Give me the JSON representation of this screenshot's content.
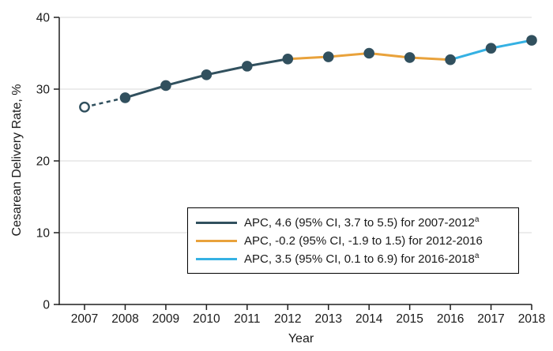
{
  "chart_data": {
    "type": "line",
    "title": "",
    "xlabel": "Year",
    "ylabel": "Cesarean Delivery Rate, %",
    "x": [
      2007,
      2008,
      2009,
      2010,
      2011,
      2012,
      2013,
      2014,
      2015,
      2016,
      2017,
      2018
    ],
    "y": [
      27.5,
      28.8,
      30.5,
      32.0,
      33.2,
      34.2,
      34.5,
      35.0,
      34.4,
      34.1,
      35.7,
      36.8
    ],
    "ylim": [
      0,
      40
    ],
    "yticks": [
      0,
      10,
      20,
      30,
      40
    ],
    "grid": true,
    "colors": {
      "dark_teal": "#31505e",
      "orange": "#e9a23b",
      "light_blue": "#35b1e3",
      "gridline": "#d9d9d9",
      "axis": "#1f1f1f"
    },
    "segments": [
      {
        "name": "pre-survey-dashed",
        "from": 2007,
        "to": 2008,
        "color": "#31505e",
        "dashed": true
      },
      {
        "name": "2007-2012",
        "from": 2008,
        "to": 2012,
        "color": "#31505e",
        "dashed": false
      },
      {
        "name": "2012-2016",
        "from": 2012,
        "to": 2016,
        "color": "#e9a23b",
        "dashed": false
      },
      {
        "name": "2016-2018",
        "from": 2016,
        "to": 2018,
        "color": "#35b1e3",
        "dashed": false
      }
    ],
    "marker": {
      "color": "#31505e",
      "open_year": 2007
    },
    "legend": {
      "position": "inside-bottom-center",
      "items": [
        {
          "label": "APC, 4.6 (95% CI, 3.7 to 5.5) for 2007-2012",
          "sup": "a",
          "color": "#31505e"
        },
        {
          "label": "APC, -0.2 (95% CI, -1.9 to 1.5) for 2012-2016",
          "sup": "",
          "color": "#e9a23b"
        },
        {
          "label": "APC, 3.5 (95% CI, 0.1 to 6.9) for 2016-2018",
          "sup": "a",
          "color": "#35b1e3"
        }
      ]
    }
  }
}
